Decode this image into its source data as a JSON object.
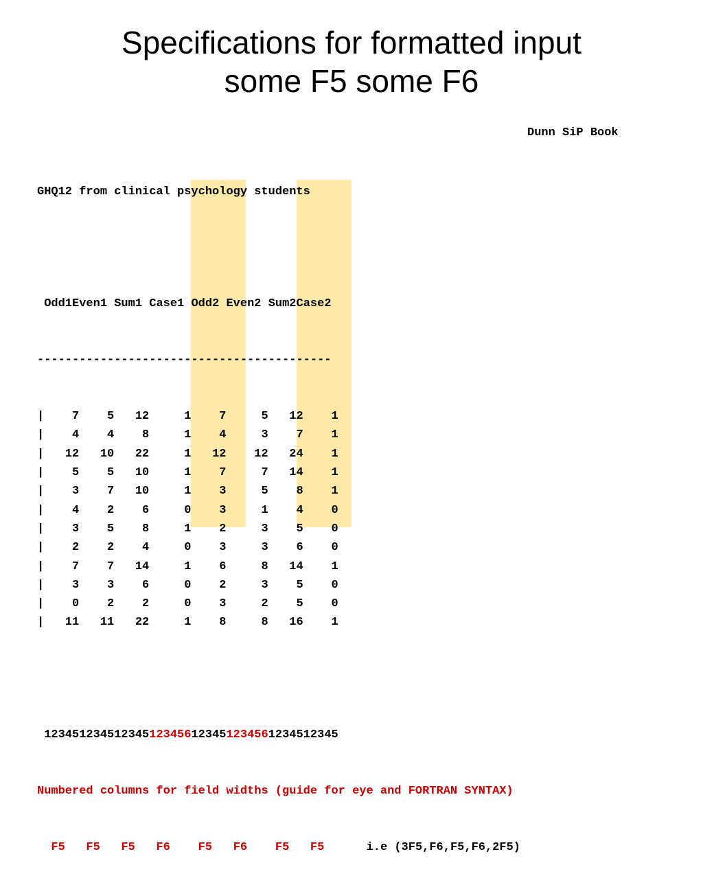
{
  "title": {
    "line1": "Specifications for formatted input",
    "line2": "some F5 some F6"
  },
  "credit": "Dunn SiP Book",
  "subtitle": "GHQ12 from clinical psychology students",
  "header": {
    "lead": " ",
    "cols": [
      "Odd1",
      "Even1",
      "Sum1",
      "Case1",
      "Odd2",
      "Even2",
      "Sum2",
      "Case2"
    ],
    "highlight_color": "#fde9a8"
  },
  "separator": "------------------------------------------",
  "rows": [
    [
      7,
      5,
      12,
      1,
      7,
      5,
      12,
      1
    ],
    [
      4,
      4,
      8,
      1,
      4,
      3,
      7,
      1
    ],
    [
      12,
      10,
      22,
      1,
      12,
      12,
      24,
      1
    ],
    [
      5,
      5,
      10,
      1,
      7,
      7,
      14,
      1
    ],
    [
      3,
      7,
      10,
      1,
      3,
      5,
      8,
      1
    ],
    [
      4,
      2,
      6,
      0,
      3,
      1,
      4,
      0
    ],
    [
      3,
      5,
      8,
      1,
      2,
      3,
      5,
      0
    ],
    [
      2,
      2,
      4,
      0,
      3,
      3,
      6,
      0
    ],
    [
      7,
      7,
      14,
      1,
      6,
      8,
      14,
      1
    ],
    [
      3,
      3,
      6,
      0,
      2,
      3,
      5,
      0
    ],
    [
      0,
      2,
      2,
      0,
      3,
      2,
      5,
      0
    ],
    [
      11,
      11,
      22,
      1,
      8,
      8,
      16,
      1
    ]
  ],
  "ruler": {
    "parts": [
      "12345",
      "12345",
      "12345",
      "123456",
      "12345",
      "123456",
      "12345",
      "12345"
    ]
  },
  "note": "Numbered columns for field widths (guide for eye and FORTRAN SYNTAX)",
  "formats": [
    "F5",
    "F5",
    "F5",
    "F6",
    "F5",
    "F6",
    "F5",
    "F5"
  ],
  "ie": "i.e (3F5,F6,F5,F6,2F5)",
  "colors": {
    "red": "#cc0000",
    "highlight": "#fde9a8"
  }
}
